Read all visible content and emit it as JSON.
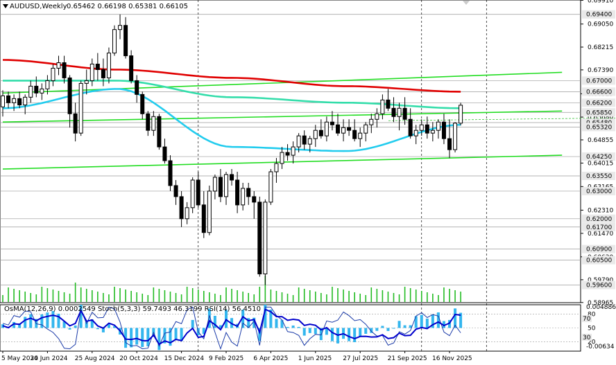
{
  "header": {
    "symbol": "AUDUSD,Weekly",
    "ohlc": "0.65462 0.66198 0.65381 0.66105"
  },
  "indicator_header": "OsMA(12,26,9) 0.0002549  Stoch(5,3,3) 59.7493 46.3199  RSI(14) 56.4510",
  "colors": {
    "bull_candle": "#ffffff",
    "bear_candle": "#000000",
    "ma_red": "#e00000",
    "ma_aqua": "#33ddaa",
    "ma_cyan": "#22ccee",
    "trend_green": "#22dd22",
    "volume_green": "#22bb22",
    "osma_bar": "#33b6ee",
    "stoch_main": "#1a3aa8",
    "rsi_line": "#0000cc",
    "level_box": "#e9e9e9"
  },
  "chart_data": [
    {
      "type": "candlestick",
      "timeframe": "Weekly",
      "ylim": [
        0.5896,
        0.6992
      ],
      "price_ticks": [
        "0.69910",
        "0.69050",
        "0.68215",
        "0.67390",
        "0.66525",
        "0.65680",
        "0.64855",
        "0.64015",
        "0.63165",
        "0.62310",
        "0.61470",
        "0.60620",
        "0.59790",
        "0.58965"
      ],
      "price_tick_values": [
        0.6991,
        0.6905,
        0.68215,
        0.6739,
        0.66525,
        0.6568,
        0.64855,
        0.64015,
        0.63165,
        0.6231,
        0.6147,
        0.6062,
        0.5979,
        0.58965
      ],
      "level_labels": [
        "0.69400",
        "0.67000",
        "0.66600",
        "0.66200",
        "0.65850",
        "0.65480",
        "0.65320",
        "0.64250",
        "0.63550",
        "0.63000",
        "0.62000",
        "0.61700",
        "0.60900",
        "0.60500",
        "0.59600"
      ],
      "level_values": [
        0.694,
        0.67,
        0.666,
        0.662,
        0.6585,
        0.6548,
        0.6532,
        0.6425,
        0.6355,
        0.63,
        0.62,
        0.617,
        0.609,
        0.605,
        0.596
      ],
      "x_labels": [
        "5 May 2024",
        "30 Jun 2024",
        "25 Aug 2024",
        "20 Oct 2024",
        "15 Dec 2024",
        "9 Feb 2025",
        "6 Apr 2025",
        "1 Jun 2025",
        "27 Jul 2025",
        "21 Sep 2025",
        "16 Nov 2025"
      ],
      "x_label_index": [
        0,
        8,
        16,
        24,
        32,
        40,
        48,
        56,
        64,
        72,
        80
      ],
      "x_tick_label_index": [
        0,
        8,
        16,
        24,
        32,
        40,
        48,
        56,
        64,
        72,
        80
      ],
      "candles": [
        [
          0.6605,
          0.6665,
          0.657,
          0.6645
        ],
        [
          0.6645,
          0.666,
          0.66,
          0.662
        ],
        [
          0.662,
          0.665,
          0.659,
          0.6635
        ],
        [
          0.6635,
          0.666,
          0.66,
          0.6612
        ],
        [
          0.6612,
          0.665,
          0.6578,
          0.664
        ],
        [
          0.664,
          0.67,
          0.662,
          0.668
        ],
        [
          0.668,
          0.6715,
          0.664,
          0.6655
        ],
        [
          0.6655,
          0.669,
          0.663,
          0.667
        ],
        [
          0.667,
          0.672,
          0.665,
          0.67
        ],
        [
          0.67,
          0.676,
          0.668,
          0.6745
        ],
        [
          0.6745,
          0.679,
          0.672,
          0.6765
        ],
        [
          0.6765,
          0.679,
          0.669,
          0.671
        ],
        [
          0.671,
          0.672,
          0.653,
          0.658
        ],
        [
          0.658,
          0.662,
          0.648,
          0.651
        ],
        [
          0.651,
          0.67,
          0.65,
          0.669
        ],
        [
          0.669,
          0.674,
          0.665,
          0.67
        ],
        [
          0.67,
          0.678,
          0.668,
          0.676
        ],
        [
          0.676,
          0.68,
          0.67,
          0.674
        ],
        [
          0.674,
          0.678,
          0.668,
          0.671
        ],
        [
          0.671,
          0.682,
          0.669,
          0.68
        ],
        [
          0.68,
          0.69,
          0.679,
          0.6885
        ],
        [
          0.6885,
          0.694,
          0.685,
          0.69
        ],
        [
          0.69,
          0.693,
          0.678,
          0.679
        ],
        [
          0.679,
          0.681,
          0.669,
          0.67
        ],
        [
          0.67,
          0.672,
          0.662,
          0.665
        ],
        [
          0.665,
          0.666,
          0.656,
          0.658
        ],
        [
          0.658,
          0.659,
          0.65,
          0.652
        ],
        [
          0.652,
          0.659,
          0.65,
          0.657
        ],
        [
          0.657,
          0.658,
          0.645,
          0.646
        ],
        [
          0.646,
          0.649,
          0.64,
          0.641
        ],
        [
          0.641,
          0.643,
          0.63,
          0.632
        ],
        [
          0.632,
          0.634,
          0.625,
          0.628
        ],
        [
          0.628,
          0.63,
          0.617,
          0.62
        ],
        [
          0.62,
          0.626,
          0.618,
          0.624
        ],
        [
          0.624,
          0.635,
          0.622,
          0.634
        ],
        [
          0.634,
          0.637,
          0.624,
          0.625
        ],
        [
          0.625,
          0.63,
          0.613,
          0.615
        ],
        [
          0.615,
          0.632,
          0.614,
          0.63
        ],
        [
          0.63,
          0.636,
          0.627,
          0.635
        ],
        [
          0.635,
          0.638,
          0.626,
          0.628
        ],
        [
          0.628,
          0.637,
          0.625,
          0.636
        ],
        [
          0.636,
          0.638,
          0.632,
          0.634
        ],
        [
          0.634,
          0.637,
          0.622,
          0.625
        ],
        [
          0.625,
          0.633,
          0.623,
          0.631
        ],
        [
          0.631,
          0.633,
          0.625,
          0.628
        ],
        [
          0.628,
          0.63,
          0.62,
          0.626
        ],
        [
          0.626,
          0.628,
          0.599,
          0.6
        ],
        [
          0.6,
          0.627,
          0.596,
          0.626
        ],
        [
          0.626,
          0.638,
          0.625,
          0.637
        ],
        [
          0.637,
          0.642,
          0.633,
          0.64
        ],
        [
          0.64,
          0.646,
          0.638,
          0.644
        ],
        [
          0.644,
          0.647,
          0.641,
          0.643
        ],
        [
          0.643,
          0.648,
          0.64,
          0.646
        ],
        [
          0.646,
          0.651,
          0.644,
          0.65
        ],
        [
          0.65,
          0.652,
          0.645,
          0.647
        ],
        [
          0.647,
          0.65,
          0.644,
          0.649
        ],
        [
          0.649,
          0.654,
          0.646,
          0.652
        ],
        [
          0.652,
          0.656,
          0.649,
          0.65
        ],
        [
          0.65,
          0.657,
          0.648,
          0.655
        ],
        [
          0.655,
          0.659,
          0.652,
          0.654
        ],
        [
          0.654,
          0.658,
          0.65,
          0.651
        ],
        [
          0.651,
          0.656,
          0.648,
          0.653
        ],
        [
          0.653,
          0.656,
          0.65,
          0.652
        ],
        [
          0.652,
          0.656,
          0.648,
          0.649
        ],
        [
          0.649,
          0.653,
          0.646,
          0.651
        ],
        [
          0.651,
          0.655,
          0.648,
          0.654
        ],
        [
          0.654,
          0.658,
          0.651,
          0.656
        ],
        [
          0.656,
          0.66,
          0.653,
          0.658
        ],
        [
          0.658,
          0.665,
          0.656,
          0.663
        ],
        [
          0.663,
          0.667,
          0.659,
          0.66
        ],
        [
          0.66,
          0.664,
          0.655,
          0.657
        ],
        [
          0.657,
          0.662,
          0.652,
          0.66
        ],
        [
          0.66,
          0.664,
          0.654,
          0.656
        ],
        [
          0.656,
          0.66,
          0.649,
          0.65
        ],
        [
          0.65,
          0.654,
          0.647,
          0.652
        ],
        [
          0.652,
          0.656,
          0.65,
          0.654
        ],
        [
          0.654,
          0.657,
          0.649,
          0.651
        ],
        [
          0.651,
          0.655,
          0.648,
          0.652
        ],
        [
          0.652,
          0.656,
          0.649,
          0.655
        ],
        [
          0.655,
          0.658,
          0.647,
          0.649
        ],
        [
          0.649,
          0.656,
          0.642,
          0.645
        ],
        [
          0.645,
          0.655,
          0.644,
          0.6546
        ],
        [
          0.6546,
          0.662,
          0.6538,
          0.6611
        ]
      ],
      "moving_averages": [
        {
          "color": "red",
          "values": [
            0.6775,
            0.674,
            0.671,
            0.668,
            0.666
          ]
        },
        {
          "color": "aqua",
          "values": [
            0.67,
            0.67,
            0.664,
            0.662,
            0.66
          ]
        },
        {
          "color": "cyan",
          "values": [
            0.66,
            0.667,
            0.646,
            0.6445,
            0.654
          ]
        }
      ],
      "trendlines": [
        {
          "color": "green",
          "from": [
            0,
            0.6655
          ],
          "to": [
            84,
            0.673
          ]
        },
        {
          "color": "green",
          "from": [
            0,
            0.638
          ],
          "to": [
            84,
            0.643
          ]
        },
        {
          "color": "green",
          "from": [
            0,
            0.655
          ],
          "to": [
            84,
            0.659
          ]
        }
      ]
    },
    {
      "type": "oscillator",
      "indicators": [
        "OsMA(12,26,9)",
        "Stoch(5,3,3)",
        "RSI(14)"
      ],
      "ylim_labels": [
        "0.0048861",
        "-0.00634"
      ],
      "stoch_levels": [
        "80",
        "50",
        "20"
      ],
      "rsi_levels": [
        "70",
        "50",
        "30"
      ]
    }
  ]
}
